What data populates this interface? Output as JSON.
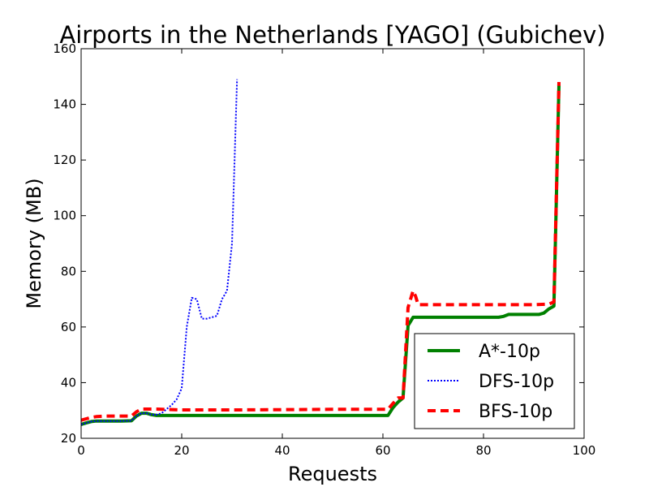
{
  "chart_data": {
    "type": "line",
    "title": "Airports in the Netherlands [YAGO] (Gubichev)",
    "xlabel": "Requests",
    "ylabel": "Memory (MB)",
    "xlim": [
      0,
      100
    ],
    "ylim": [
      20,
      160
    ],
    "xticks": [
      0,
      20,
      40,
      60,
      80,
      100
    ],
    "yticks": [
      20,
      40,
      60,
      80,
      100,
      120,
      140,
      160
    ],
    "grid": false,
    "legend_position": "bottom-right",
    "series": [
      {
        "name": "A*-10p",
        "color": "#008000",
        "style": "solid",
        "x": [
          0,
          1,
          2,
          3,
          5,
          8,
          10,
          11,
          12,
          13,
          14,
          15,
          20,
          30,
          40,
          50,
          60,
          61,
          62,
          63,
          64,
          65,
          66,
          70,
          75,
          80,
          83,
          84,
          85,
          88,
          90,
          91,
          92,
          93,
          94,
          95
        ],
        "y": [
          25,
          25.5,
          26,
          26.2,
          26.2,
          26.2,
          26.3,
          28,
          29,
          29,
          28.5,
          28.2,
          28.2,
          28.2,
          28.2,
          28.2,
          28.2,
          28.2,
          31,
          33,
          34.5,
          60.5,
          63.5,
          63.5,
          63.5,
          63.5,
          63.5,
          63.8,
          64.5,
          64.5,
          64.5,
          64.5,
          65,
          66.5,
          67.5,
          147
        ]
      },
      {
        "name": "DFS-10p",
        "color": "#0000ff",
        "style": "dotted",
        "x": [
          0,
          1,
          2,
          3,
          5,
          8,
          10,
          11,
          12,
          13,
          14,
          15,
          16,
          17,
          18,
          19,
          20,
          21,
          22,
          23,
          24,
          25,
          26,
          27,
          28,
          29,
          30,
          31
        ],
        "y": [
          25,
          25.5,
          26,
          26.2,
          26.2,
          26.2,
          26.3,
          28,
          29,
          29,
          28.5,
          28.5,
          29,
          30.5,
          32,
          34,
          38,
          60,
          70.5,
          70,
          63,
          63,
          63.5,
          64,
          70,
          73,
          90,
          149
        ]
      },
      {
        "name": "BFS-10p",
        "color": "#ff0000",
        "style": "dashed",
        "x": [
          0,
          1,
          2,
          3,
          5,
          8,
          10,
          11,
          12,
          13,
          15,
          20,
          30,
          40,
          50,
          60,
          61,
          62,
          63,
          64,
          65,
          66,
          66.5,
          67,
          70,
          80,
          90,
          93,
          94,
          95
        ],
        "y": [
          26.5,
          27,
          27.5,
          27.8,
          28,
          28,
          28,
          29.5,
          30.5,
          30.5,
          30.5,
          30.2,
          30.2,
          30.3,
          30.4,
          30.4,
          30.4,
          32.5,
          34.5,
          34.5,
          67,
          73,
          71,
          68,
          68,
          68,
          68,
          68.2,
          69,
          148
        ]
      }
    ]
  }
}
